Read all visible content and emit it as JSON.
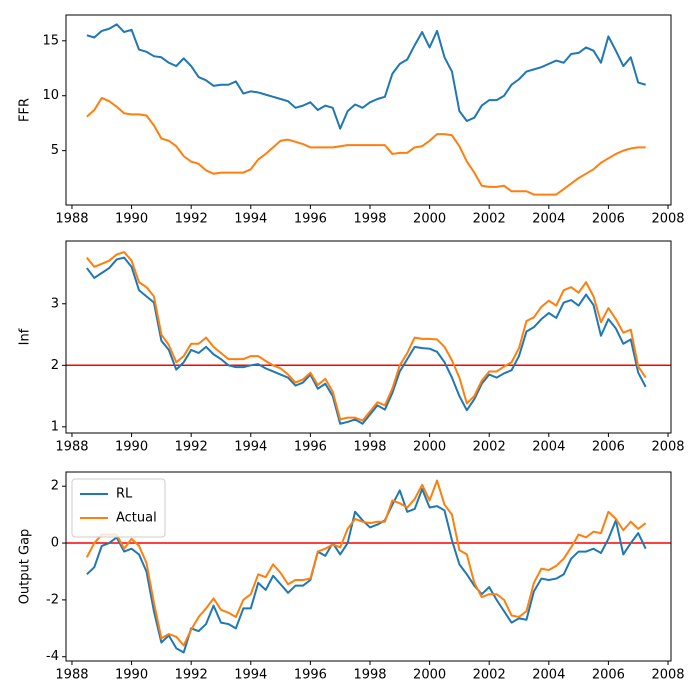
{
  "chart_data": [
    {
      "type": "line",
      "ylabel": "FFR",
      "x": [
        1988.5,
        1988.75,
        1989,
        1989.25,
        1989.5,
        1989.75,
        1990,
        1990.25,
        1990.5,
        1990.75,
        1991,
        1991.25,
        1991.5,
        1991.75,
        1992,
        1992.25,
        1992.5,
        1992.75,
        1993,
        1993.25,
        1993.5,
        1993.75,
        1994,
        1994.25,
        1994.5,
        1994.75,
        1995,
        1995.25,
        1995.5,
        1995.75,
        1996,
        1996.25,
        1996.5,
        1996.75,
        1997,
        1997.25,
        1997.5,
        1997.75,
        1998,
        1998.25,
        1998.5,
        1998.75,
        1999,
        1999.25,
        1999.5,
        1999.75,
        2000,
        2000.25,
        2000.5,
        2000.75,
        2001,
        2001.25,
        2001.5,
        2001.75,
        2002,
        2002.25,
        2002.5,
        2002.75,
        2003,
        2003.25,
        2003.5,
        2003.75,
        2004,
        2004.25,
        2004.5,
        2004.75,
        2005,
        2005.25,
        2005.5,
        2005.75,
        2006,
        2006.25,
        2006.5,
        2006.75,
        2007,
        2007.25
      ],
      "series": [
        {
          "color": "#1f77b4",
          "values": [
            15.5,
            15.3,
            15.9,
            16.1,
            16.5,
            15.8,
            16.0,
            14.2,
            14.0,
            13.6,
            13.5,
            13.0,
            12.7,
            13.4,
            12.7,
            11.7,
            11.4,
            10.9,
            11.0,
            11.0,
            11.3,
            10.2,
            10.4,
            10.3,
            10.1,
            9.9,
            9.7,
            9.5,
            8.9,
            9.1,
            9.4,
            8.7,
            9.1,
            8.9,
            7.0,
            8.6,
            9.2,
            8.9,
            9.4,
            9.7,
            9.9,
            12.0,
            12.9,
            13.3,
            14.6,
            15.8,
            14.4,
            15.9,
            13.5,
            12.2,
            8.6,
            7.7,
            8.0,
            9.1,
            9.6,
            9.6,
            10.0,
            11.0,
            11.5,
            12.2,
            12.4,
            12.6,
            12.9,
            13.2,
            13.0,
            13.8,
            13.9,
            14.4,
            14.1,
            13.0,
            15.4,
            14.1,
            12.7,
            13.5,
            11.2,
            11.0
          ]
        },
        {
          "color": "#ff7f0e",
          "values": [
            8.1,
            8.7,
            9.8,
            9.5,
            9.0,
            8.4,
            8.3,
            8.3,
            8.2,
            7.3,
            6.1,
            5.9,
            5.4,
            4.5,
            4.0,
            3.8,
            3.2,
            2.9,
            3.0,
            3.0,
            3.0,
            3.0,
            3.3,
            4.2,
            4.7,
            5.3,
            5.9,
            6.0,
            5.8,
            5.6,
            5.3,
            5.3,
            5.3,
            5.3,
            5.4,
            5.5,
            5.5,
            5.5,
            5.5,
            5.5,
            5.5,
            4.7,
            4.8,
            4.8,
            5.3,
            5.4,
            5.9,
            6.5,
            6.5,
            6.4,
            5.4,
            4.0,
            3.0,
            1.8,
            1.7,
            1.7,
            1.8,
            1.3,
            1.3,
            1.3,
            1.0,
            1.0,
            1.0,
            1.0,
            1.5,
            2.0,
            2.5,
            2.9,
            3.3,
            3.9,
            4.3,
            4.7,
            5.0,
            5.2,
            5.3,
            5.3
          ]
        }
      ],
      "xlim": [
        1987.8,
        2008.1
      ],
      "xticks": [
        1988,
        1990,
        1992,
        1994,
        1996,
        1998,
        2000,
        2002,
        2004,
        2006,
        2008
      ],
      "ylim": [
        0.05,
        17.35
      ],
      "yticks": [
        5,
        10,
        15
      ]
    },
    {
      "type": "line",
      "ylabel": "Inf",
      "x": [
        1988.5,
        1988.75,
        1989,
        1989.25,
        1989.5,
        1989.75,
        1990,
        1990.25,
        1990.5,
        1990.75,
        1991,
        1991.25,
        1991.5,
        1991.75,
        1992,
        1992.25,
        1992.5,
        1992.75,
        1993,
        1993.25,
        1993.5,
        1993.75,
        1994,
        1994.25,
        1994.5,
        1994.75,
        1995,
        1995.25,
        1995.5,
        1995.75,
        1996,
        1996.25,
        1996.5,
        1996.75,
        1997,
        1997.25,
        1997.5,
        1997.75,
        1998,
        1998.25,
        1998.5,
        1998.75,
        1999,
        1999.25,
        1999.5,
        1999.75,
        2000,
        2000.25,
        2000.5,
        2000.75,
        2001,
        2001.25,
        2001.5,
        2001.75,
        2002,
        2002.25,
        2002.5,
        2002.75,
        2003,
        2003.25,
        2003.5,
        2003.75,
        2004,
        2004.25,
        2004.5,
        2004.75,
        2005,
        2005.25,
        2005.5,
        2005.75,
        2006,
        2006.25,
        2006.5,
        2006.75,
        2007,
        2007.25
      ],
      "series": [
        {
          "color": "#1f77b4",
          "values": [
            3.58,
            3.42,
            3.5,
            3.58,
            3.72,
            3.75,
            3.6,
            3.22,
            3.12,
            3.02,
            2.4,
            2.25,
            1.93,
            2.05,
            2.25,
            2.2,
            2.3,
            2.18,
            2.1,
            2.0,
            1.97,
            1.97,
            2.0,
            2.02,
            1.95,
            1.9,
            1.85,
            1.8,
            1.67,
            1.72,
            1.85,
            1.62,
            1.7,
            1.5,
            1.05,
            1.08,
            1.12,
            1.05,
            1.2,
            1.35,
            1.28,
            1.55,
            1.9,
            2.1,
            2.3,
            2.28,
            2.27,
            2.22,
            2.05,
            1.8,
            1.5,
            1.27,
            1.45,
            1.7,
            1.85,
            1.8,
            1.87,
            1.92,
            2.15,
            2.55,
            2.62,
            2.75,
            2.85,
            2.77,
            3.02,
            3.06,
            2.97,
            3.15,
            2.98,
            2.48,
            2.75,
            2.6,
            2.35,
            2.42,
            1.88,
            1.65
          ]
        },
        {
          "color": "#ff7f0e",
          "values": [
            3.75,
            3.6,
            3.65,
            3.7,
            3.8,
            3.84,
            3.7,
            3.35,
            3.27,
            3.12,
            2.5,
            2.33,
            2.05,
            2.15,
            2.35,
            2.35,
            2.45,
            2.3,
            2.2,
            2.1,
            2.1,
            2.1,
            2.15,
            2.15,
            2.07,
            2.0,
            1.95,
            1.85,
            1.72,
            1.77,
            1.88,
            1.68,
            1.78,
            1.57,
            1.12,
            1.15,
            1.15,
            1.1,
            1.25,
            1.4,
            1.35,
            1.62,
            2.0,
            2.2,
            2.45,
            2.43,
            2.43,
            2.42,
            2.3,
            2.08,
            1.8,
            1.38,
            1.5,
            1.75,
            1.9,
            1.9,
            1.98,
            2.05,
            2.28,
            2.72,
            2.78,
            2.95,
            3.05,
            2.97,
            3.22,
            3.27,
            3.18,
            3.35,
            3.12,
            2.7,
            2.93,
            2.75,
            2.53,
            2.58,
            1.98,
            1.8
          ]
        }
      ],
      "hline": 2,
      "hline_color": "#ff0000",
      "xlim": [
        1987.8,
        2008.1
      ],
      "xticks": [
        1988,
        1990,
        1992,
        1994,
        1996,
        1998,
        2000,
        2002,
        2004,
        2006,
        2008
      ],
      "ylim": [
        0.9,
        4.02
      ],
      "yticks": [
        1,
        2,
        3
      ]
    },
    {
      "type": "line",
      "ylabel": "Output Gap",
      "x": [
        1988.5,
        1988.75,
        1989,
        1989.25,
        1989.5,
        1989.75,
        1990,
        1990.25,
        1990.5,
        1990.75,
        1991,
        1991.25,
        1991.5,
        1991.75,
        1992,
        1992.25,
        1992.5,
        1992.75,
        1993,
        1993.25,
        1993.5,
        1993.75,
        1994,
        1994.25,
        1994.5,
        1994.75,
        1995,
        1995.25,
        1995.5,
        1995.75,
        1996,
        1996.25,
        1996.5,
        1996.75,
        1997,
        1997.25,
        1997.5,
        1997.75,
        1998,
        1998.25,
        1998.5,
        1998.75,
        1999,
        1999.25,
        1999.5,
        1999.75,
        2000,
        2000.25,
        2000.5,
        2000.75,
        2001,
        2001.25,
        2001.5,
        2001.75,
        2002,
        2002.25,
        2002.5,
        2002.75,
        2003,
        2003.25,
        2003.5,
        2003.75,
        2004,
        2004.25,
        2004.5,
        2004.75,
        2005,
        2005.25,
        2005.5,
        2005.75,
        2006,
        2006.25,
        2006.5,
        2006.75,
        2007,
        2007.25
      ],
      "series": [
        {
          "name": "RL",
          "color": "#1f77b4",
          "values": [
            -1.1,
            -0.85,
            -0.1,
            0.0,
            0.2,
            -0.3,
            -0.2,
            -0.4,
            -1.0,
            -2.4,
            -3.5,
            -3.25,
            -3.7,
            -3.85,
            -3.0,
            -3.1,
            -2.85,
            -2.2,
            -2.8,
            -2.85,
            -3.0,
            -2.3,
            -2.3,
            -1.4,
            -1.65,
            -1.15,
            -1.45,
            -1.75,
            -1.5,
            -1.5,
            -1.3,
            -0.3,
            -0.45,
            0.0,
            -0.4,
            0.0,
            1.1,
            0.8,
            0.55,
            0.65,
            0.8,
            1.35,
            1.85,
            1.1,
            1.2,
            1.9,
            1.25,
            1.3,
            1.15,
            0.1,
            -0.75,
            -1.1,
            -1.5,
            -1.8,
            -1.55,
            -2.0,
            -2.4,
            -2.8,
            -2.65,
            -2.7,
            -1.7,
            -1.25,
            -1.3,
            -1.25,
            -1.1,
            -0.55,
            -0.3,
            -0.3,
            -0.2,
            -0.35,
            0.15,
            0.8,
            -0.4,
            0.0,
            0.35,
            -0.2
          ]
        },
        {
          "name": "Actual",
          "color": "#ff7f0e",
          "values": [
            -0.5,
            0.0,
            0.3,
            0.3,
            0.3,
            -0.2,
            0.15,
            -0.1,
            -0.7,
            -2.1,
            -3.35,
            -3.2,
            -3.3,
            -3.6,
            -3.05,
            -2.6,
            -2.3,
            -1.95,
            -2.35,
            -2.45,
            -2.6,
            -2.0,
            -1.8,
            -1.1,
            -1.2,
            -0.75,
            -1.05,
            -1.45,
            -1.3,
            -1.3,
            -1.25,
            -0.3,
            -0.2,
            -0.05,
            -0.15,
            0.5,
            0.85,
            0.75,
            0.7,
            0.75,
            0.75,
            1.5,
            1.4,
            1.25,
            1.55,
            2.05,
            1.5,
            2.2,
            1.35,
            1.0,
            -0.25,
            -0.4,
            -1.4,
            -1.9,
            -1.8,
            -1.8,
            -2.0,
            -2.55,
            -2.6,
            -2.4,
            -1.4,
            -0.9,
            -0.95,
            -0.8,
            -0.55,
            -0.15,
            0.3,
            0.2,
            0.4,
            0.35,
            1.1,
            0.85,
            0.45,
            0.75,
            0.5,
            0.7
          ]
        }
      ],
      "hline": 0,
      "hline_color": "#ff0000",
      "legend": "upper left",
      "xlim": [
        1987.8,
        2008.1
      ],
      "xticks": [
        1988,
        1990,
        1992,
        1994,
        1996,
        1998,
        2000,
        2002,
        2004,
        2006,
        2008
      ],
      "ylim": [
        -4.15,
        2.5
      ],
      "yticks": [
        -4,
        -2,
        0,
        2
      ]
    }
  ]
}
